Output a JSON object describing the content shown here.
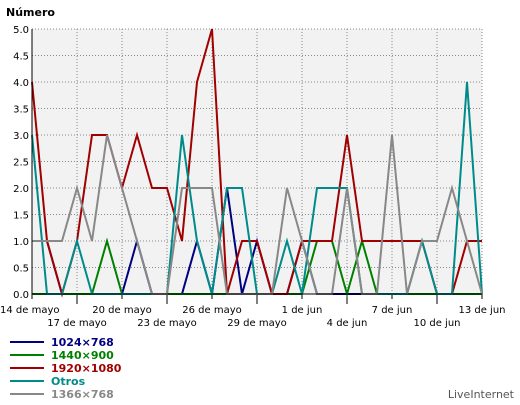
{
  "chart_data": {
    "type": "line",
    "ylabel": "Número",
    "ylim": [
      0,
      5
    ],
    "y_ticks": [
      "0.0",
      "0.5",
      "1.0",
      "1.5",
      "2.0",
      "2.5",
      "3.0",
      "3.5",
      "4.0",
      "4.5",
      "5.0"
    ],
    "x_ticks_row1": [
      {
        "day": 0,
        "label": "14 de mayo"
      },
      {
        "day": 6,
        "label": "20 de mayo"
      },
      {
        "day": 12,
        "label": "26 de mayo"
      },
      {
        "day": 18,
        "label": "1 de jun"
      },
      {
        "day": 24,
        "label": "7 de jun"
      },
      {
        "day": 30,
        "label": "13 de jun"
      }
    ],
    "x_ticks_row2": [
      {
        "day": 3,
        "label": "17 de mayo"
      },
      {
        "day": 9,
        "label": "23 de mayo"
      },
      {
        "day": 15,
        "label": "29 de mayo"
      },
      {
        "day": 21,
        "label": "4 de jun"
      },
      {
        "day": 27,
        "label": "10 de jun"
      }
    ],
    "x_range": [
      0,
      30
    ],
    "grid": true,
    "legend_position": "bottom-left",
    "series": [
      {
        "name": "1024×768",
        "color": "#000080",
        "values": [
          1,
          1,
          0,
          0,
          0,
          0,
          0,
          1,
          0,
          0,
          0,
          1,
          0,
          2,
          0,
          1,
          0,
          0,
          1,
          0,
          0,
          0,
          0,
          0,
          0,
          0,
          0,
          0,
          0,
          0,
          0
        ]
      },
      {
        "name": "1440×900",
        "color": "#008000",
        "values": [
          0,
          0,
          0,
          0,
          0,
          1,
          0,
          0,
          0,
          0,
          0,
          0,
          0,
          0,
          0,
          0,
          0,
          0,
          0,
          1,
          1,
          0,
          1,
          0,
          0,
          0,
          0,
          0,
          0,
          0,
          0
        ]
      },
      {
        "name": "1920×1080",
        "color": "#a00000",
        "values": [
          4,
          1,
          0,
          1,
          3,
          3,
          2,
          3,
          2,
          2,
          1,
          4,
          5,
          0,
          1,
          1,
          0,
          0,
          1,
          1,
          1,
          3,
          1,
          1,
          1,
          1,
          1,
          0,
          0,
          1,
          1
        ]
      },
      {
        "name": "Otros",
        "color": "#008b8b",
        "values": [
          3,
          0,
          0,
          1,
          0,
          0,
          0,
          0,
          0,
          0,
          3,
          1,
          0,
          2,
          2,
          0,
          0,
          1,
          0,
          2,
          2,
          2,
          0,
          0,
          0,
          0,
          1,
          0,
          0,
          4,
          0
        ]
      },
      {
        "name": "1366×768",
        "color": "#888888",
        "values": [
          1,
          1,
          1,
          2,
          1,
          3,
          2,
          1,
          0,
          0,
          2,
          2,
          2,
          0,
          0,
          0,
          0,
          2,
          1,
          0,
          0,
          2,
          0,
          0,
          3,
          0,
          1,
          1,
          2,
          1,
          0
        ]
      }
    ]
  },
  "credit": "LiveInternet"
}
